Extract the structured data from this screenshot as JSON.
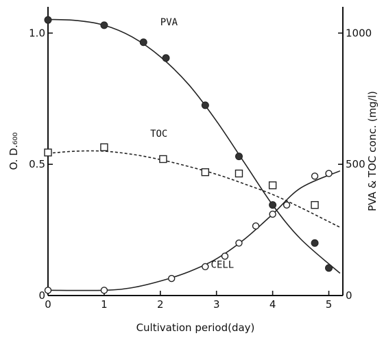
{
  "chart_data": {
    "type": "line",
    "xlabel": "Cultivation period(day)",
    "ylabel_left": "O. D.₆₀₀",
    "ylabel_right": "PVA & TOC conc. (mg/l)",
    "xlim": [
      0,
      5.25
    ],
    "ylim_left": [
      0,
      1.1
    ],
    "ylim_right": [
      0,
      1100
    ],
    "x_ticks": [
      0,
      1,
      2,
      3,
      4,
      5
    ],
    "y_left_ticks": [
      {
        "value": 0,
        "label": "0"
      },
      {
        "value": 0.5,
        "label": "0.5"
      },
      {
        "value": 1.0,
        "label": "1.0"
      }
    ],
    "y_right_ticks": [
      {
        "value": 0,
        "label": "0"
      },
      {
        "value": 500,
        "label": "500"
      },
      {
        "value": 1000,
        "label": "1000"
      }
    ],
    "series": [
      {
        "name": "PVA",
        "axis": "right",
        "marker": "filled-circle",
        "line": "solid",
        "points": [
          {
            "x": 0,
            "y": 1050
          },
          {
            "x": 1,
            "y": 1030
          },
          {
            "x": 1.7,
            "y": 965
          },
          {
            "x": 2.1,
            "y": 905
          },
          {
            "x": 2.8,
            "y": 725
          },
          {
            "x": 3.4,
            "y": 530
          },
          {
            "x": 4.0,
            "y": 345
          },
          {
            "x": 4.75,
            "y": 200
          },
          {
            "x": 5.0,
            "y": 105
          }
        ],
        "curve": [
          {
            "x": 0,
            "y": 1052
          },
          {
            "x": 0.5,
            "y": 1048
          },
          {
            "x": 1,
            "y": 1030
          },
          {
            "x": 1.5,
            "y": 985
          },
          {
            "x": 2,
            "y": 910
          },
          {
            "x": 2.5,
            "y": 805
          },
          {
            "x": 3,
            "y": 665
          },
          {
            "x": 3.5,
            "y": 505
          },
          {
            "x": 4,
            "y": 345
          },
          {
            "x": 4.5,
            "y": 215
          },
          {
            "x": 5.2,
            "y": 85
          }
        ]
      },
      {
        "name": "TOC",
        "axis": "right",
        "marker": "open-square",
        "line": "dashed",
        "points": [
          {
            "x": 0,
            "y": 545
          },
          {
            "x": 1,
            "y": 565
          },
          {
            "x": 2.05,
            "y": 520
          },
          {
            "x": 2.8,
            "y": 470
          },
          {
            "x": 3.4,
            "y": 465
          },
          {
            "x": 4.0,
            "y": 420
          },
          {
            "x": 4.75,
            "y": 345
          }
        ],
        "curve": [
          {
            "x": 0,
            "y": 542
          },
          {
            "x": 0.5,
            "y": 550
          },
          {
            "x": 1,
            "y": 550
          },
          {
            "x": 1.5,
            "y": 538
          },
          {
            "x": 2,
            "y": 518
          },
          {
            "x": 2.5,
            "y": 492
          },
          {
            "x": 3,
            "y": 462
          },
          {
            "x": 3.5,
            "y": 425
          },
          {
            "x": 4,
            "y": 385
          },
          {
            "x": 4.5,
            "y": 335
          },
          {
            "x": 5.2,
            "y": 260
          }
        ]
      },
      {
        "name": "CELL",
        "axis": "left",
        "marker": "open-circle",
        "line": "solid",
        "points": [
          {
            "x": 0,
            "y": 0.02
          },
          {
            "x": 1,
            "y": 0.02
          },
          {
            "x": 2.2,
            "y": 0.065
          },
          {
            "x": 2.8,
            "y": 0.11
          },
          {
            "x": 3.15,
            "y": 0.15
          },
          {
            "x": 3.4,
            "y": 0.2
          },
          {
            "x": 3.7,
            "y": 0.265
          },
          {
            "x": 4.0,
            "y": 0.31
          },
          {
            "x": 4.25,
            "y": 0.345
          },
          {
            "x": 4.75,
            "y": 0.455
          },
          {
            "x": 5.0,
            "y": 0.465
          }
        ],
        "curve": [
          {
            "x": 0,
            "y": 0.02
          },
          {
            "x": 1,
            "y": 0.02
          },
          {
            "x": 1.5,
            "y": 0.03
          },
          {
            "x": 2,
            "y": 0.055
          },
          {
            "x": 2.5,
            "y": 0.09
          },
          {
            "x": 3,
            "y": 0.14
          },
          {
            "x": 3.5,
            "y": 0.215
          },
          {
            "x": 4,
            "y": 0.31
          },
          {
            "x": 4.5,
            "y": 0.41
          },
          {
            "x": 5.2,
            "y": 0.475
          }
        ]
      }
    ],
    "annotations": [
      {
        "text": "PVA",
        "x": 2.0,
        "y_right": 1030
      },
      {
        "text": "TOC",
        "x": 1.82,
        "y_right": 605
      },
      {
        "text": "CELL",
        "x": 2.9,
        "y_left": 0.105
      }
    ]
  }
}
